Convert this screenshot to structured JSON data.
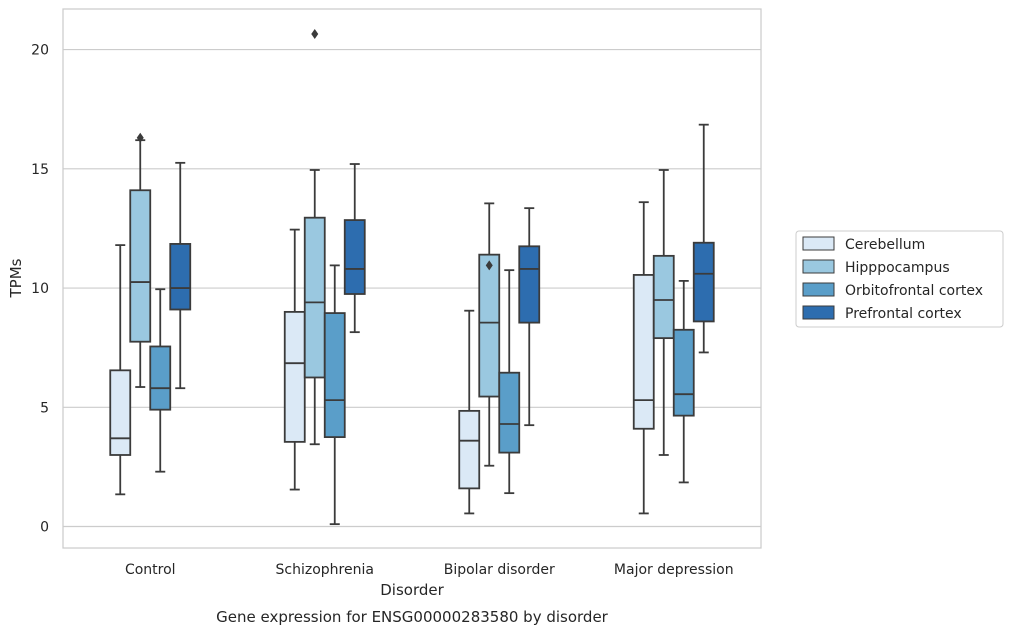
{
  "chart_data": {
    "type": "box",
    "xlabel": "Disorder",
    "ylabel": "TPMs",
    "caption": "Gene expression for ENSG00000283580 by disorder",
    "ylim": [
      -0.9,
      21.7
    ],
    "yticks": [
      "0",
      "5",
      "10",
      "15",
      "20"
    ],
    "grid": true,
    "legend_position": "right",
    "categories": [
      "Control",
      "Schizophrenia",
      "Bipolar disorder",
      "Major depression"
    ],
    "series": [
      {
        "name": "Cerebellum",
        "color": "#dbe9f6",
        "boxes": [
          {
            "low": 1.35,
            "q1": 3.0,
            "median": 3.7,
            "q3": 6.55,
            "high": 11.8,
            "outliers": []
          },
          {
            "low": 1.55,
            "q1": 3.55,
            "median": 6.85,
            "q3": 9.0,
            "high": 12.45,
            "outliers": []
          },
          {
            "low": 0.55,
            "q1": 1.6,
            "median": 3.6,
            "q3": 4.85,
            "high": 9.05,
            "outliers": []
          },
          {
            "low": 0.55,
            "q1": 4.1,
            "median": 5.3,
            "q3": 10.55,
            "high": 13.6,
            "outliers": []
          }
        ]
      },
      {
        "name": "Hipppocampus",
        "color": "#9ac8e0",
        "boxes": [
          {
            "low": 5.85,
            "q1": 7.75,
            "median": 10.25,
            "q3": 14.1,
            "high": 16.2,
            "outliers": [
              16.3
            ]
          },
          {
            "low": 3.45,
            "q1": 6.25,
            "median": 9.4,
            "q3": 12.95,
            "high": 14.95,
            "outliers": [
              20.65
            ]
          },
          {
            "low": 2.55,
            "q1": 5.45,
            "median": 8.55,
            "q3": 11.4,
            "high": 13.55,
            "outliers": [
              10.95
            ]
          },
          {
            "low": 3.0,
            "q1": 7.9,
            "median": 9.5,
            "q3": 11.35,
            "high": 14.95,
            "outliers": []
          }
        ]
      },
      {
        "name": "Orbitofrontal cortex",
        "color": "#5a9ec9",
        "boxes": [
          {
            "low": 2.3,
            "q1": 4.9,
            "median": 5.8,
            "q3": 7.55,
            "high": 9.95,
            "outliers": []
          },
          {
            "low": 0.1,
            "q1": 3.75,
            "median": 5.3,
            "q3": 8.95,
            "high": 10.95,
            "outliers": []
          },
          {
            "low": 1.4,
            "q1": 3.1,
            "median": 4.3,
            "q3": 6.45,
            "high": 10.75,
            "outliers": []
          },
          {
            "low": 1.85,
            "q1": 4.65,
            "median": 5.55,
            "q3": 8.25,
            "high": 10.3,
            "outliers": []
          }
        ]
      },
      {
        "name": "Prefrontal cortex",
        "color": "#2d6daf",
        "boxes": [
          {
            "low": 5.8,
            "q1": 9.1,
            "median": 10.0,
            "q3": 11.85,
            "high": 15.25,
            "outliers": []
          },
          {
            "low": 8.15,
            "q1": 9.75,
            "median": 10.8,
            "q3": 12.85,
            "high": 15.2,
            "outliers": []
          },
          {
            "low": 4.25,
            "q1": 8.55,
            "median": 10.8,
            "q3": 11.75,
            "high": 13.35,
            "outliers": []
          },
          {
            "low": 7.3,
            "q1": 8.6,
            "median": 10.6,
            "q3": 11.9,
            "high": 16.85,
            "outliers": []
          }
        ]
      }
    ]
  }
}
